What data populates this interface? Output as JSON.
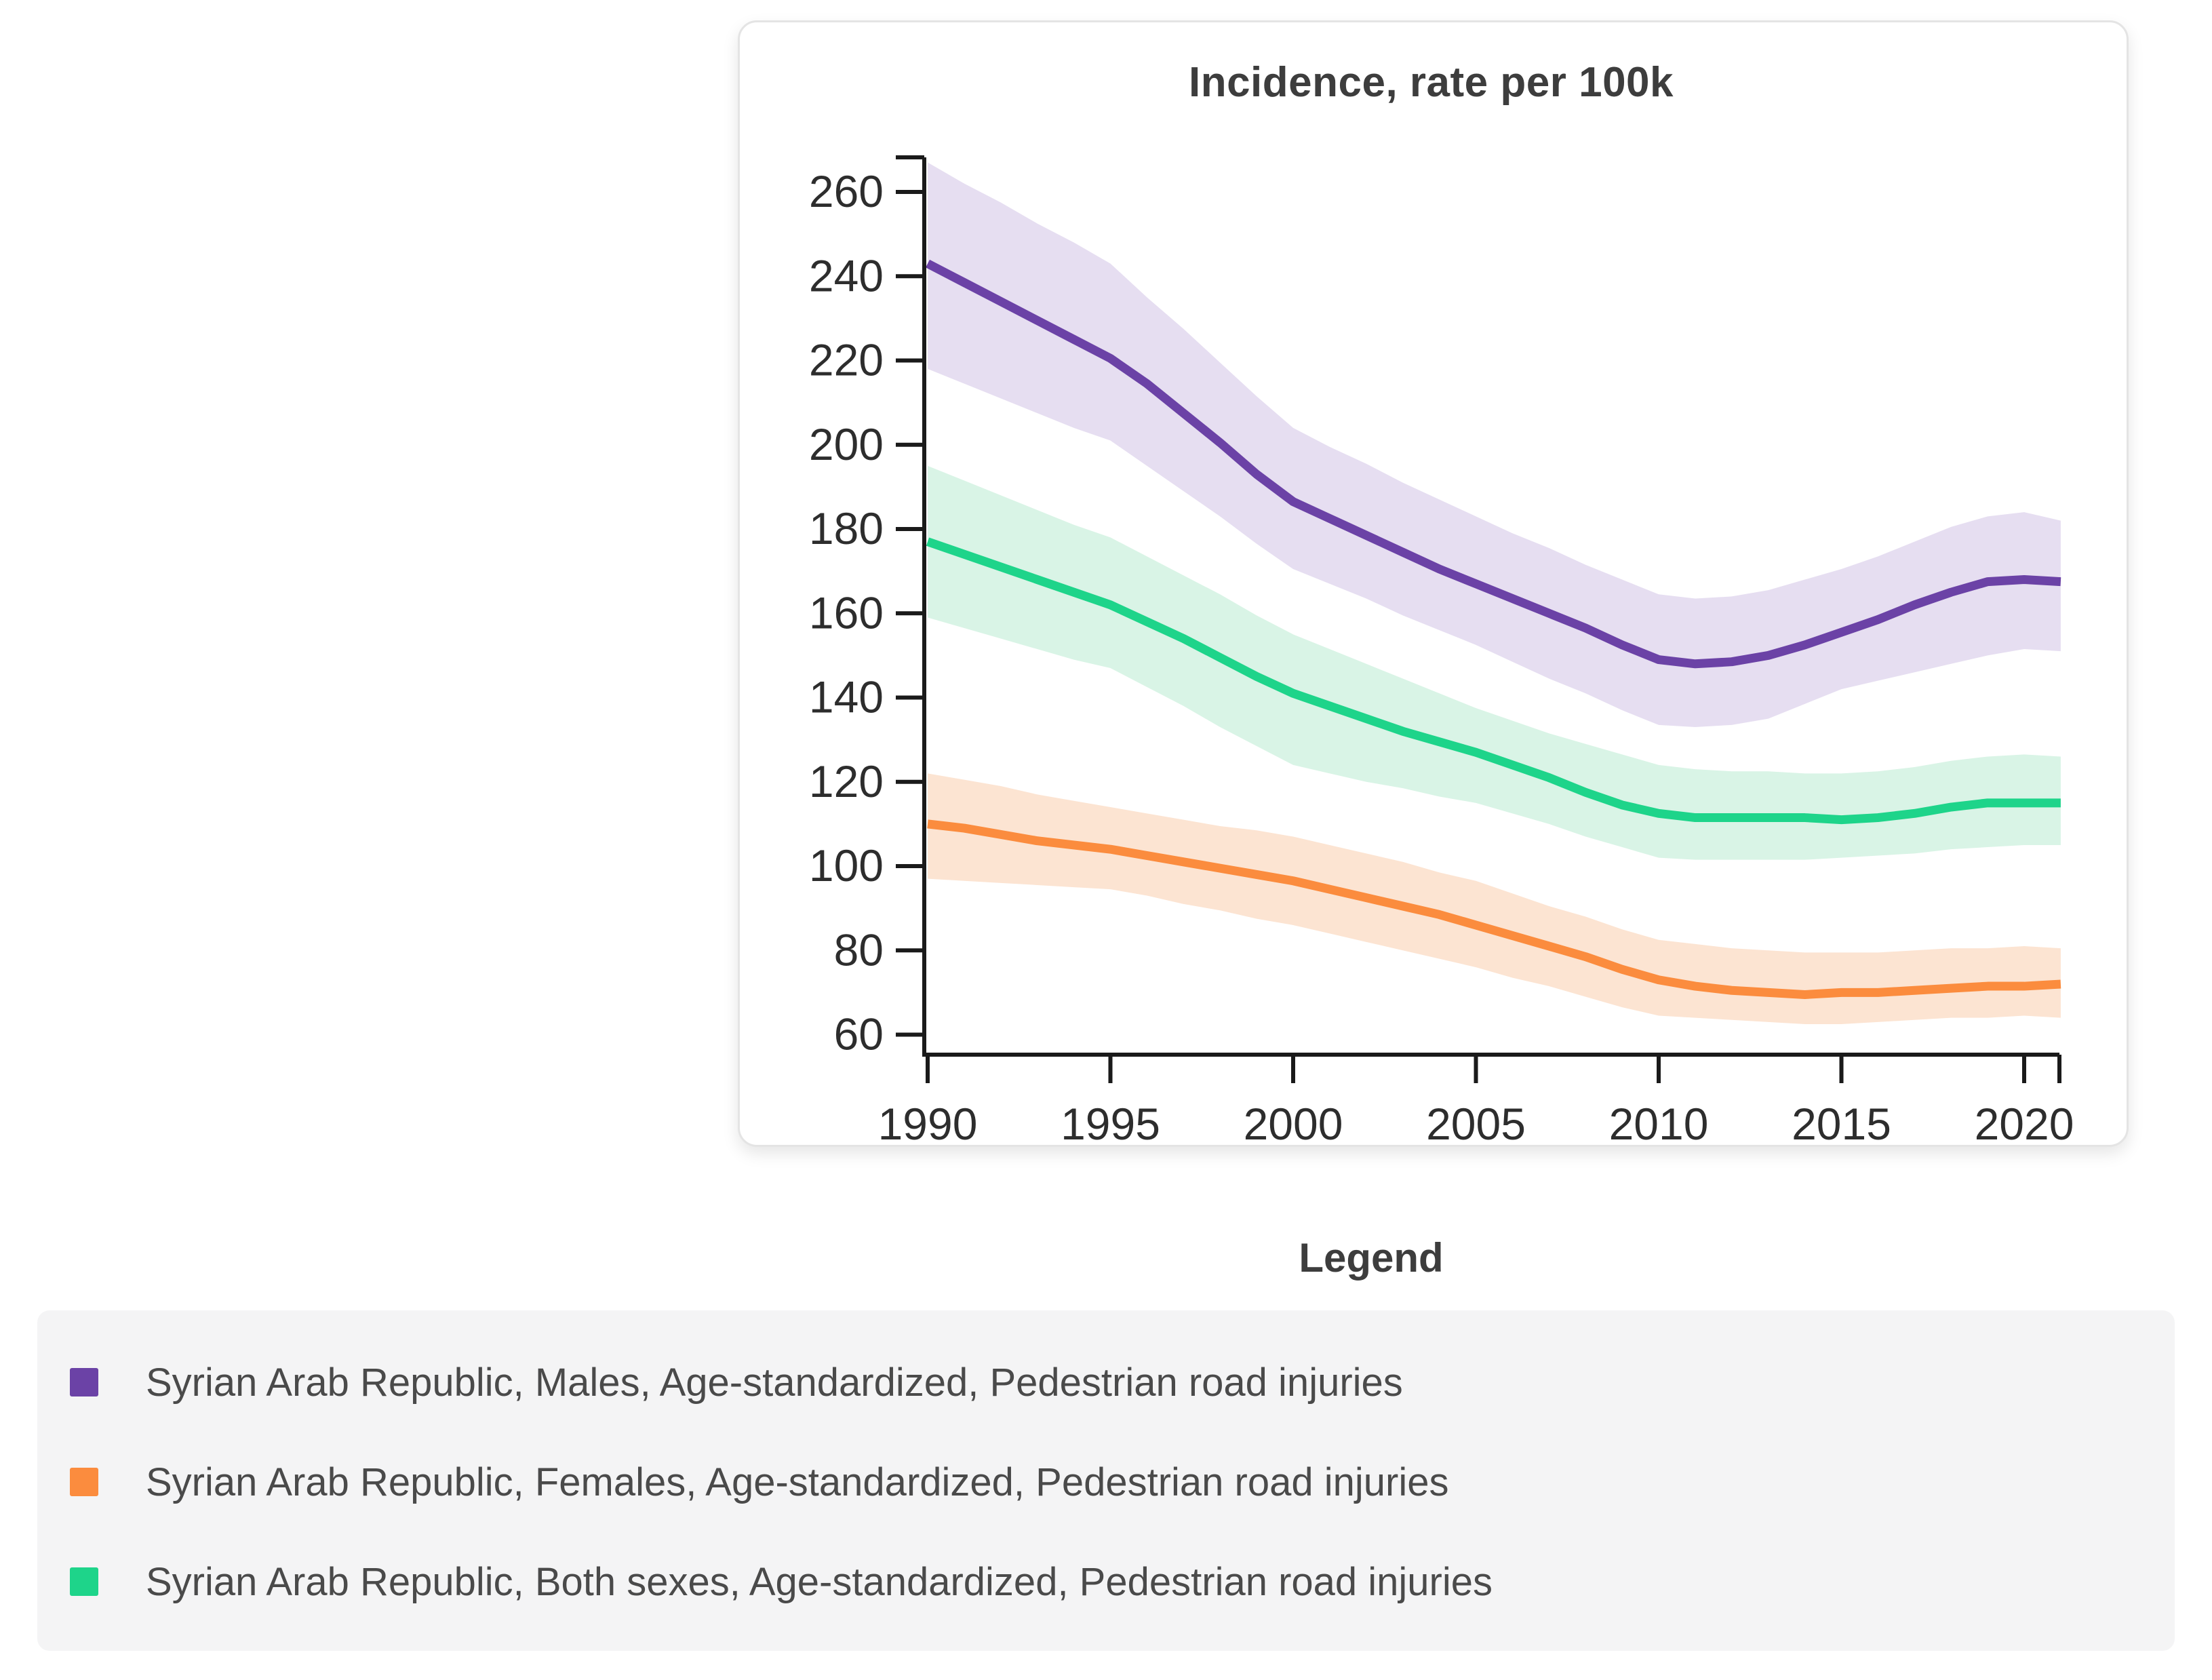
{
  "page": {
    "background": "#ffffff"
  },
  "header": {
    "title": "Incidence, rate per 100k"
  },
  "legend": {
    "title": "Legend",
    "items": [
      {
        "label": "Syrian Arab Republic, Males, Age-standardized, Pedestrian road injuries",
        "color": "#6b42a6"
      },
      {
        "label": "Syrian Arab Republic, Females, Age-standardized, Pedestrian road injuries",
        "color": "#fb8c3e"
      },
      {
        "label": "Syrian Arab Republic, Both sexes, Age-standardized, Pedestrian road injuries",
        "color": "#1ed48a"
      }
    ]
  },
  "chart_data": {
    "type": "line",
    "title": "Incidence, rate per 100k",
    "xlabel": "",
    "ylabel": "",
    "grid": false,
    "legend_position": "bottom",
    "xlim": [
      1990,
      2021
    ],
    "ylim": [
      55,
      268
    ],
    "x_ticks": [
      1990,
      1995,
      2000,
      2005,
      2010,
      2015,
      2020
    ],
    "y_ticks": [
      260,
      240,
      220,
      200,
      180,
      160,
      140,
      120,
      100,
      80,
      60
    ],
    "x": [
      1990,
      1991,
      1992,
      1993,
      1994,
      1995,
      1996,
      1997,
      1998,
      1999,
      2000,
      2001,
      2002,
      2003,
      2004,
      2005,
      2006,
      2007,
      2008,
      2009,
      2010,
      2011,
      2012,
      2013,
      2014,
      2015,
      2016,
      2017,
      2018,
      2019,
      2020,
      2021
    ],
    "series": [
      {
        "name": "Syrian Arab Republic, Males, Age-standardized, Pedestrian road injuries",
        "color": "#6b42a6",
        "band_color": "#e6def1",
        "values": [
          243,
          238.5,
          234,
          229.5,
          225,
          220.5,
          214.5,
          207.5,
          200.5,
          193,
          186.5,
          182.5,
          178.5,
          174.5,
          170.5,
          167,
          163.5,
          160,
          156.5,
          152.5,
          149,
          148,
          148.5,
          150,
          152.5,
          155.5,
          158.5,
          162,
          165,
          167.5,
          168,
          167.5
        ],
        "upper": [
          267,
          262,
          257.5,
          252.5,
          248,
          243,
          235,
          227.5,
          219.5,
          211.5,
          204,
          199.5,
          195.5,
          191,
          187,
          183,
          179,
          175.5,
          171.5,
          168,
          164.5,
          163.5,
          164,
          165.5,
          168,
          170.5,
          173.5,
          177,
          180.5,
          183,
          184,
          182
        ],
        "lower": [
          218,
          214.5,
          211,
          207.5,
          204,
          201,
          195,
          189,
          183,
          176.5,
          170.5,
          167,
          163.5,
          159.5,
          156,
          152.5,
          148.5,
          144.5,
          141,
          137,
          133.5,
          133,
          133.5,
          135,
          138.5,
          142,
          144,
          146,
          148,
          150,
          151.5,
          151
        ]
      },
      {
        "name": "Syrian Arab Republic, Females, Age-standardized, Pedestrian road injuries",
        "color": "#fb8c3e",
        "band_color": "#fce4d2",
        "values": [
          110,
          109,
          107.5,
          106,
          105,
          104,
          102.5,
          101,
          99.5,
          98,
          96.5,
          94.5,
          92.5,
          90.5,
          88.5,
          86,
          83.5,
          81,
          78.5,
          75.5,
          73,
          71.5,
          70.5,
          70,
          69.5,
          70,
          70,
          70.5,
          71,
          71.5,
          71.5,
          72
        ],
        "upper": [
          122,
          120.5,
          119,
          117,
          115.5,
          114,
          112.5,
          111,
          109.5,
          108.5,
          107,
          105,
          103,
          101,
          98.5,
          96.5,
          93.5,
          90.5,
          88,
          85,
          82.5,
          81.5,
          80.5,
          80,
          79.5,
          79.5,
          79.5,
          80,
          80.5,
          80.5,
          81,
          80.5
        ],
        "lower": [
          97,
          96.5,
          96,
          95.5,
          95,
          94.5,
          93,
          91,
          89.5,
          87.5,
          86,
          84,
          82,
          80,
          78,
          76,
          73.5,
          71.5,
          69,
          66.5,
          64.5,
          64,
          63.5,
          63,
          62.5,
          62.5,
          63,
          63.5,
          64,
          64,
          64.5,
          64
        ]
      },
      {
        "name": "Syrian Arab Republic, Both sexes, Age-standardized, Pedestrian road injuries",
        "color": "#1ed48a",
        "band_color": "#d9f4e6",
        "values": [
          177,
          174,
          171,
          168,
          165,
          162,
          158,
          154,
          149.5,
          145,
          141,
          138,
          135,
          132,
          129.5,
          127,
          124,
          121,
          117.5,
          114.5,
          112.5,
          111.5,
          111.5,
          111.5,
          111.5,
          111,
          111.5,
          112.5,
          114,
          115,
          115,
          115
        ],
        "upper": [
          195,
          191.5,
          188,
          184.5,
          181,
          178,
          173.5,
          169,
          164.5,
          159.5,
          155,
          151.5,
          148,
          144.5,
          141,
          137.5,
          134.5,
          131.5,
          129,
          126.5,
          124,
          123,
          122.5,
          122.5,
          122,
          122,
          122.5,
          123.5,
          125,
          126,
          126.5,
          126
        ],
        "lower": [
          159,
          156.5,
          154,
          151.5,
          149,
          147,
          142.5,
          138,
          133,
          128.5,
          124,
          122,
          120,
          118.5,
          116.5,
          115,
          112.5,
          110,
          107,
          104.5,
          102,
          101.5,
          101.5,
          101.5,
          101.5,
          102,
          102.5,
          103,
          104,
          104.5,
          105,
          105
        ]
      }
    ]
  }
}
